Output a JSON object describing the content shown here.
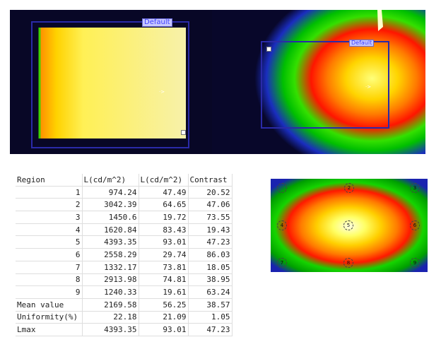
{
  "capture": {
    "left_region_label": "Default",
    "right_region_label": "Default"
  },
  "heatmap": {
    "points": [
      "2",
      "3",
      "4",
      "5",
      "6",
      "7",
      "8",
      "9"
    ]
  },
  "results": {
    "headers": [
      "Region",
      "L(cd/m^2)",
      "L(cd/m^2)",
      "Contrast"
    ],
    "rows": [
      [
        "1",
        "974.24",
        "47.49",
        "20.52"
      ],
      [
        "2",
        "3042.39",
        "64.65",
        "47.06"
      ],
      [
        "3",
        "1450.6",
        "19.72",
        "73.55"
      ],
      [
        "4",
        "1620.84",
        "83.43",
        "19.43"
      ],
      [
        "5",
        "4393.35",
        "93.01",
        "47.23"
      ],
      [
        "6",
        "2558.29",
        "29.74",
        "86.03"
      ],
      [
        "7",
        "1332.17",
        "73.81",
        "18.05"
      ],
      [
        "8",
        "2913.98",
        "74.81",
        "38.95"
      ],
      [
        "9",
        "1240.33",
        "19.61",
        "63.24"
      ]
    ],
    "summary": [
      [
        "Mean value",
        "2169.58",
        "56.25",
        "38.57"
      ],
      [
        "Uniformity(%)",
        "22.18",
        "21.09",
        "1.05"
      ],
      [
        "Lmax",
        "4393.35",
        "93.01",
        "47.23"
      ]
    ]
  },
  "colors": {
    "background": "#0b0a2e",
    "uniform_panel": "#f8f15a",
    "region_frame": "#2a2aa8",
    "heat_hot": "#ffff66",
    "heat_mid": "#ff2a00",
    "heat_green": "#00d100",
    "heat_low": "#1a1aa8"
  }
}
